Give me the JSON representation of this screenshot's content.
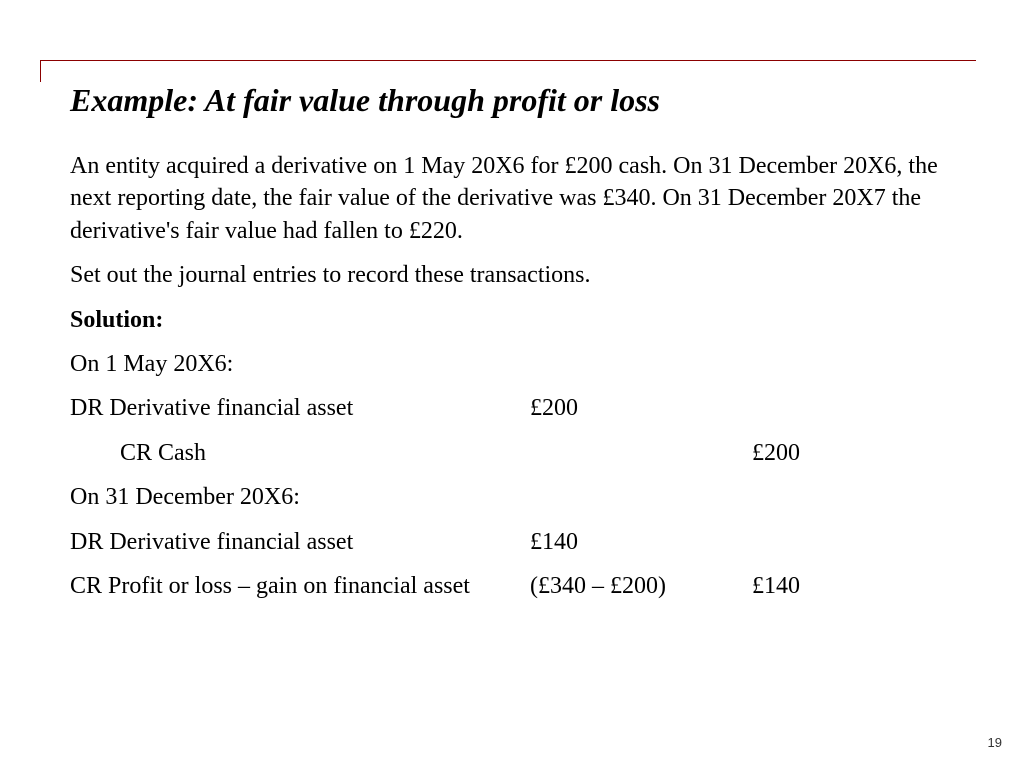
{
  "slide": {
    "title": "Example: At fair value through profit or loss",
    "intro": "An entity acquired a derivative on 1 May 20X6 for £200 cash. On 31 December 20X6, the next reporting date, the fair value of the derivative was £340. On 31 December 20X7 the derivative's fair value had fallen to £220.",
    "instruction": "Set out the journal entries to record these transactions.",
    "solution_label": "Solution:",
    "date1": "On 1 May 20X6:",
    "e1": {
      "desc": "DR Derivative financial asset",
      "dr": "£200",
      "cr": ""
    },
    "e2": {
      "desc": "CR Cash",
      "dr": "",
      "cr": "£200"
    },
    "date2": "On 31 December 20X6:",
    "e3": {
      "desc": "DR Derivative financial asset",
      "dr": "£140",
      "cr": ""
    },
    "e4": {
      "desc": "CR Profit or loss – gain on financial asset",
      "dr": "(£340 – £200)",
      "cr": "£140"
    },
    "page_number": "19"
  },
  "style": {
    "rule_color": "#8b0000",
    "title_fontsize": 32,
    "body_fontsize": 24,
    "background": "#ffffff",
    "text_color": "#000000"
  }
}
